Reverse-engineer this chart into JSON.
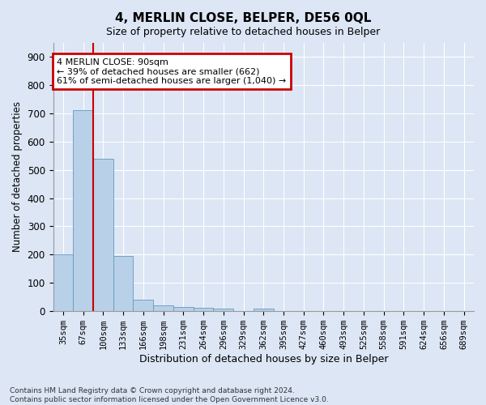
{
  "title": "4, MERLIN CLOSE, BELPER, DE56 0QL",
  "subtitle": "Size of property relative to detached houses in Belper",
  "xlabel": "Distribution of detached houses by size in Belper",
  "ylabel": "Number of detached properties",
  "footer_line1": "Contains HM Land Registry data © Crown copyright and database right 2024.",
  "footer_line2": "Contains public sector information licensed under the Open Government Licence v3.0.",
  "categories": [
    "35sqm",
    "67sqm",
    "100sqm",
    "133sqm",
    "166sqm",
    "198sqm",
    "231sqm",
    "264sqm",
    "296sqm",
    "329sqm",
    "362sqm",
    "395sqm",
    "427sqm",
    "460sqm",
    "493sqm",
    "525sqm",
    "558sqm",
    "591sqm",
    "624sqm",
    "656sqm",
    "689sqm"
  ],
  "values": [
    200,
    710,
    540,
    195,
    42,
    20,
    14,
    13,
    10,
    0,
    9,
    0,
    0,
    0,
    0,
    0,
    0,
    0,
    0,
    0,
    0
  ],
  "bar_color": "#b8d0e8",
  "bar_edge_color": "#6699bb",
  "vline_color": "#cc0000",
  "annotation_line1": "4 MERLIN CLOSE: 90sqm",
  "annotation_line2": "← 39% of detached houses are smaller (662)",
  "annotation_line3": "61% of semi-detached houses are larger (1,040) →",
  "annotation_box_facecolor": "#ffffff",
  "annotation_box_edgecolor": "#cc0000",
  "ylim": [
    0,
    950
  ],
  "yticks": [
    0,
    100,
    200,
    300,
    400,
    500,
    600,
    700,
    800,
    900
  ],
  "background_color": "#dce6f5",
  "plot_background": "#dce6f5",
  "grid_color": "#ffffff",
  "vline_bar_index": 2
}
